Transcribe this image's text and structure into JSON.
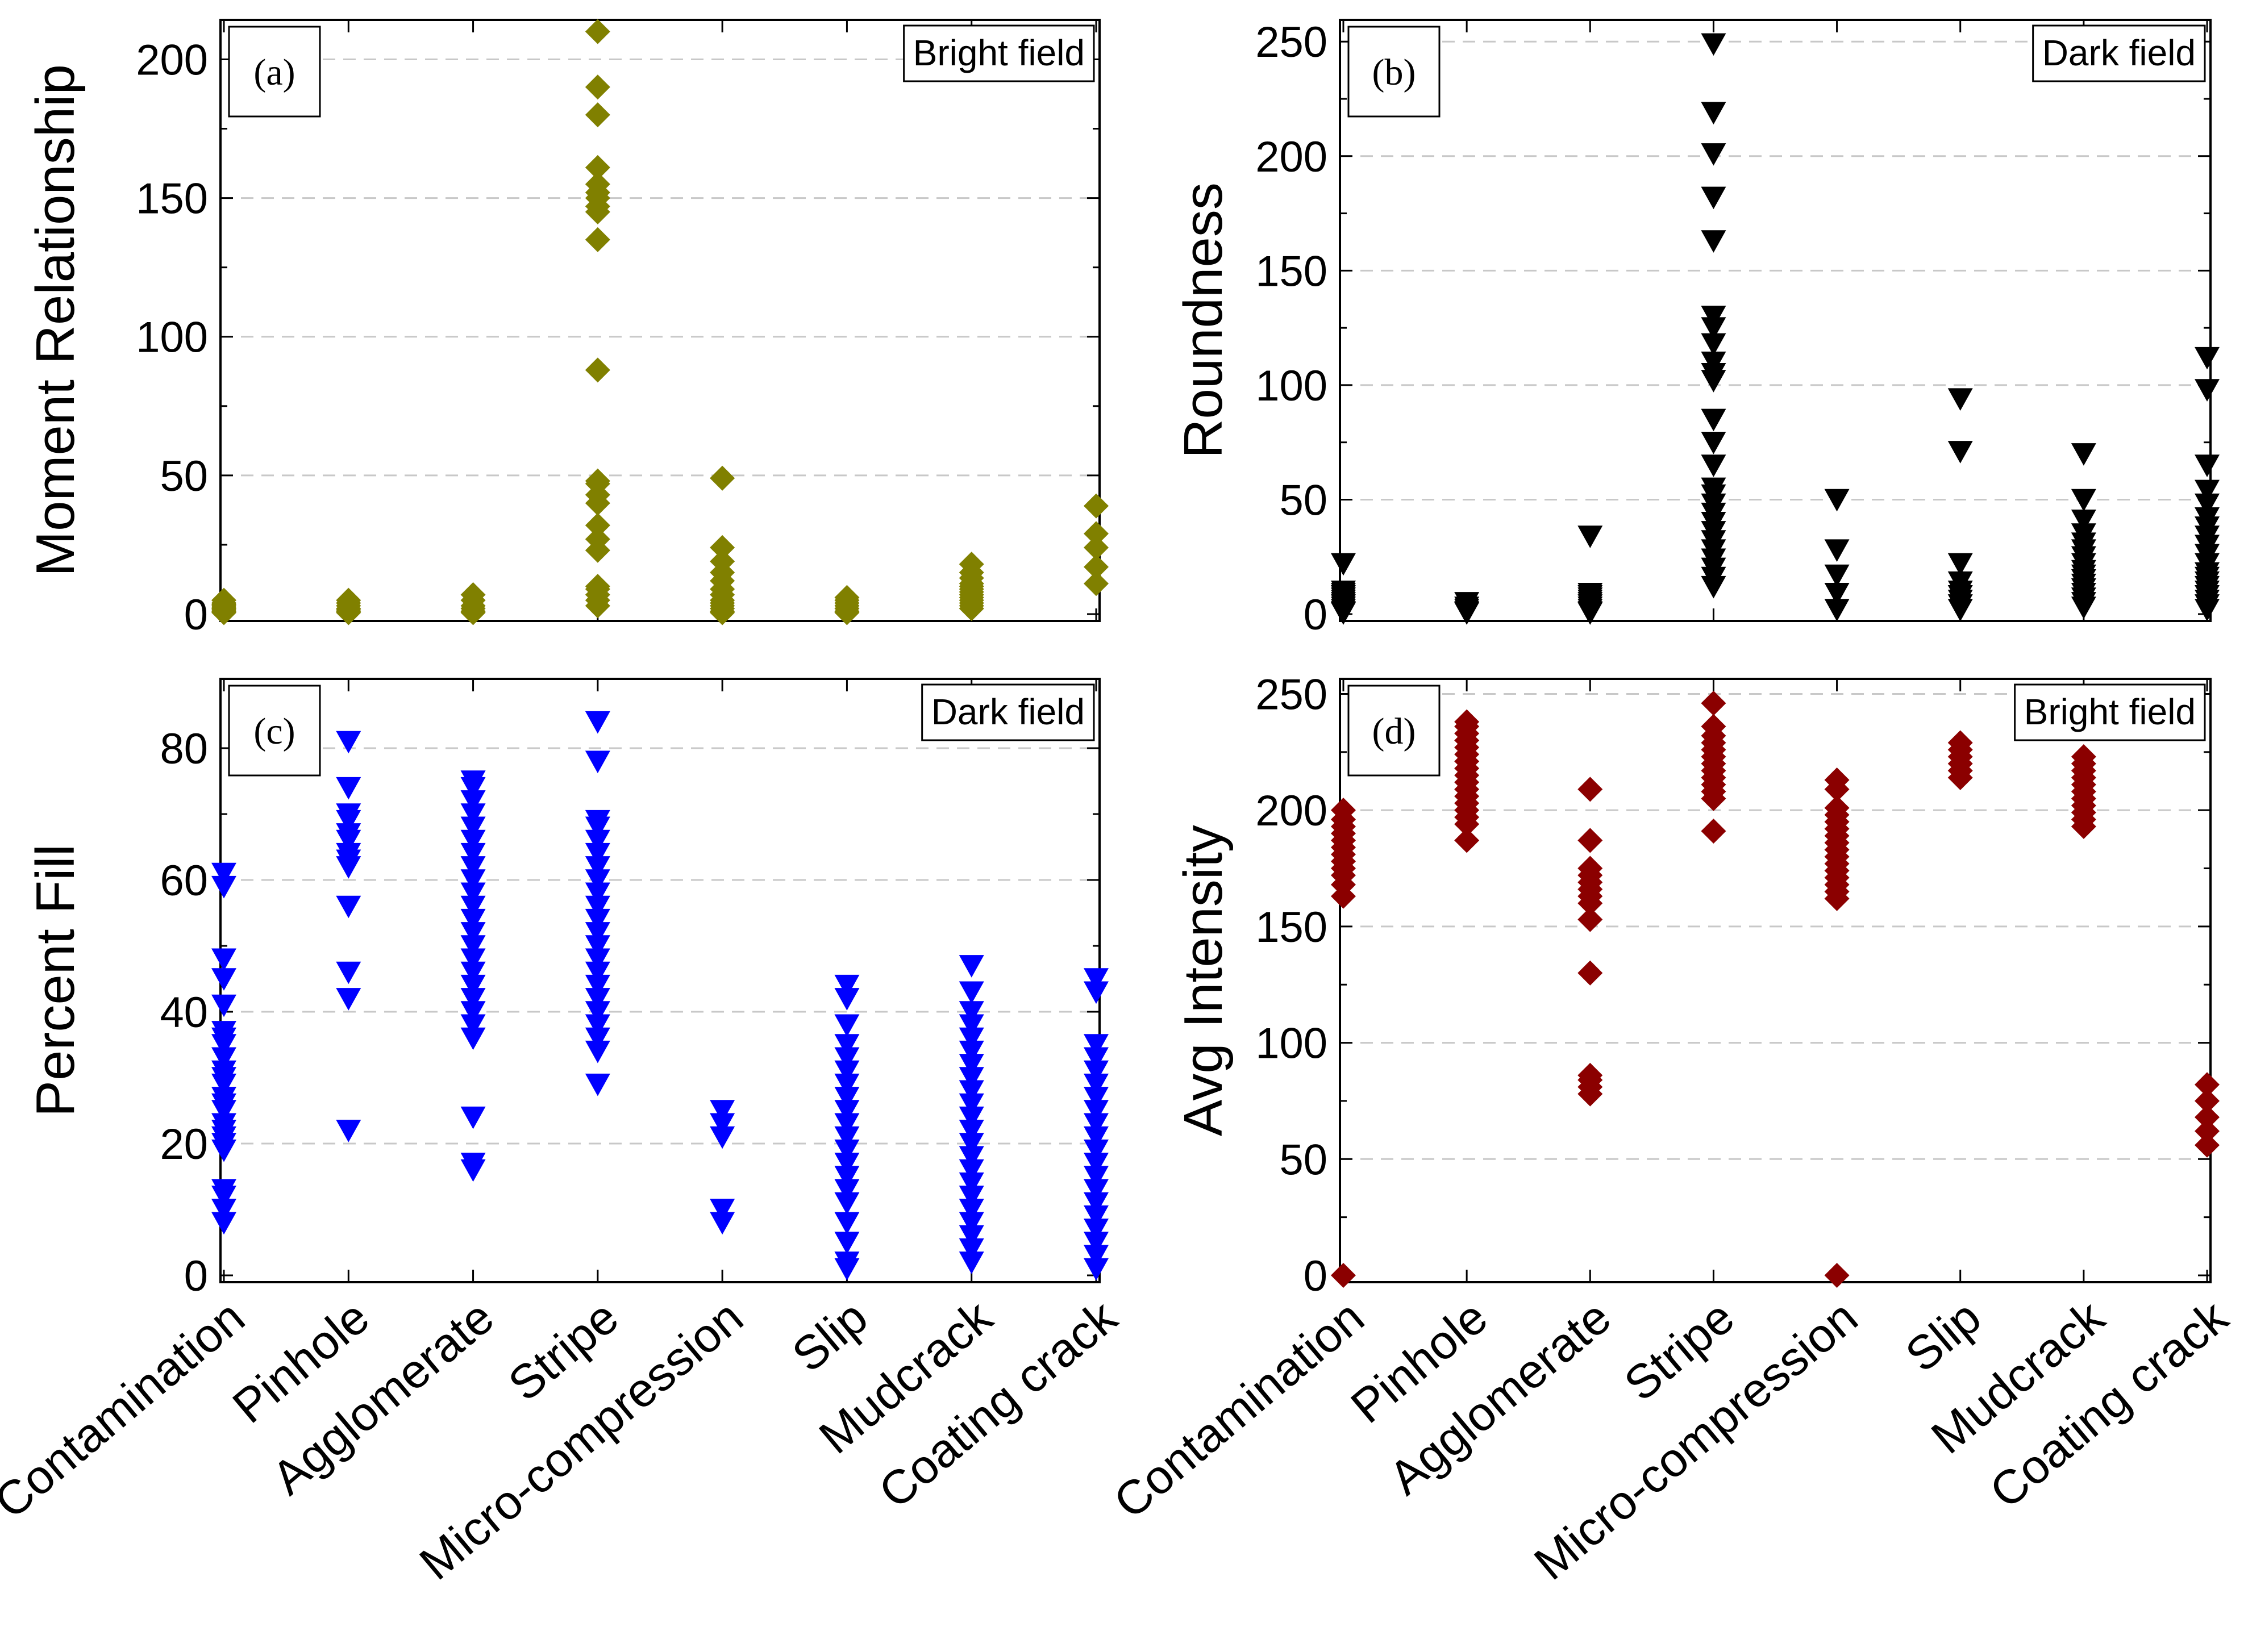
{
  "chart_data": [
    {
      "type": "scatter",
      "panel": "(a)",
      "field": "Bright field",
      "ylabel": "Moment Relationship",
      "xlabel": "",
      "categories": [
        "Contamination",
        "Pinhole",
        "Agglomerate",
        "Stripe",
        "Micro-compression",
        "Slip",
        "Mudcrack",
        "Coating crack"
      ],
      "ylim": [
        0,
        213
      ],
      "yticks": [
        0,
        50,
        100,
        150,
        200
      ],
      "grid": true,
      "marker": "diamond",
      "color": "#808000",
      "series": [
        {
          "name": "Moment Relationship",
          "values": [
            [
              0.5,
              1,
              1.5,
              2,
              2.5,
              3,
              3.5,
              4,
              5
            ],
            [
              0.5,
              1,
              1.5,
              2,
              3,
              4,
              5
            ],
            [
              0.5,
              1,
              2,
              3,
              5,
              7
            ],
            [
              3,
              5,
              7,
              9,
              10,
              23,
              27,
              32,
              40,
              43,
              47,
              48,
              88,
              135,
              145,
              147,
              150,
              152,
              155,
              161,
              180,
              190,
              210
            ],
            [
              0.5,
              1,
              2,
              3,
              4,
              5,
              7,
              9,
              12,
              15,
              19,
              24,
              49
            ],
            [
              0.5,
              1,
              2,
              3,
              4,
              5,
              6
            ],
            [
              2,
              3,
              4,
              5,
              6,
              7,
              8,
              9,
              10,
              11,
              13,
              15,
              18
            ],
            [
              11,
              17,
              24,
              29,
              39
            ]
          ]
        }
      ]
    },
    {
      "type": "scatter",
      "panel": "(b)",
      "field": "Dark field",
      "ylabel": "Roundness",
      "xlabel": "",
      "categories": [
        "Contamination",
        "Pinhole",
        "Agglomerate",
        "Stripe",
        "Micro-compression",
        "Slip",
        "Mudcrack",
        "Coating crack"
      ],
      "ylim": [
        0,
        258
      ],
      "yticks": [
        0,
        50,
        100,
        150,
        200,
        250
      ],
      "grid": true,
      "marker": "triangle-down",
      "color": "#000000",
      "series": [
        {
          "name": "Roundness",
          "values": [
            [
              0.5,
              1,
              2,
              3,
              4,
              5,
              6,
              7,
              8,
              9,
              10,
              22
            ],
            [
              0.5,
              1,
              2,
              3,
              5
            ],
            [
              0.5,
              1,
              2,
              3,
              4,
              5,
              6,
              7,
              8,
              9,
              34
            ],
            [
              12,
              16,
              20,
              24,
              28,
              32,
              36,
              40,
              44,
              48,
              52,
              55,
              65,
              75,
              85,
              102,
              105,
              110,
              118,
              125,
              130,
              163,
              182,
              201,
              219,
              249
            ],
            [
              2,
              9,
              17,
              28,
              50
            ],
            [
              2,
              4,
              6,
              8,
              10,
              14,
              22,
              71,
              94
            ],
            [
              3,
              5,
              7,
              9,
              11,
              13,
              15,
              17,
              19,
              22,
              25,
              28,
              31,
              35,
              41,
              50,
              70
            ],
            [
              2,
              4,
              6,
              8,
              10,
              12,
              14,
              16,
              18,
              22,
              26,
              30,
              34,
              38,
              42,
              48,
              54,
              65,
              98,
              112
            ]
          ]
        }
      ]
    },
    {
      "type": "scatter",
      "panel": "(c)",
      "field": "Dark field",
      "ylabel": "Percent Fill",
      "xlabel": "",
      "categories": [
        "Contamination",
        "Pinhole",
        "Agglomerate",
        "Stripe",
        "Micro-compression",
        "Slip",
        "Mudcrack",
        "Coating crack"
      ],
      "ylim": [
        0,
        90
      ],
      "yticks": [
        0,
        20,
        40,
        60,
        80
      ],
      "grid": true,
      "marker": "triangle-down",
      "color": "#0000ff",
      "series": [
        {
          "name": "Percent Fill",
          "values": [
            [
              8,
              10,
              12,
              13,
              19,
              20,
              21,
              22,
              23,
              25,
              26,
              27,
              29,
              30,
              31,
              33,
              35,
              36,
              37,
              41,
              45,
              48,
              59,
              61
            ],
            [
              22,
              42,
              46,
              56,
              62,
              63,
              64,
              66,
              67,
              69,
              70,
              74,
              81
            ],
            [
              16,
              17,
              24,
              36,
              38,
              40,
              42,
              44,
              46,
              48,
              50,
              52,
              54,
              56,
              58,
              60,
              62,
              64,
              66,
              68,
              70,
              72,
              74,
              75
            ],
            [
              29,
              34,
              36,
              38,
              40,
              42,
              44,
              46,
              48,
              50,
              52,
              54,
              56,
              58,
              60,
              62,
              64,
              66,
              68,
              69,
              78,
              84
            ],
            [
              8,
              10,
              21,
              23,
              25
            ],
            [
              1,
              2,
              5,
              8,
              11,
              13,
              15,
              17,
              19,
              21,
              23,
              25,
              27,
              29,
              31,
              33,
              35,
              38,
              42,
              44
            ],
            [
              2,
              4,
              6,
              8,
              10,
              12,
              14,
              16,
              18,
              20,
              22,
              24,
              26,
              28,
              30,
              32,
              34,
              36,
              38,
              40,
              43,
              47
            ],
            [
              1,
              3,
              5,
              7,
              9,
              11,
              13,
              15,
              17,
              19,
              21,
              23,
              25,
              27,
              29,
              31,
              33,
              35,
              43,
              45
            ]
          ]
        }
      ]
    },
    {
      "type": "scatter",
      "panel": "(d)",
      "field": "Bright field",
      "ylabel": "Avg Intensity",
      "xlabel": "",
      "categories": [
        "Contamination",
        "Pinhole",
        "Agglomerate",
        "Stripe",
        "Micro-compression",
        "Slip",
        "Mudcrack",
        "Coating crack"
      ],
      "ylim": [
        0,
        255
      ],
      "yticks": [
        0,
        50,
        100,
        150,
        200,
        250
      ],
      "grid": true,
      "marker": "diamond",
      "color": "#8b0000",
      "series": [
        {
          "name": "Avg Intensity",
          "values": [
            [
              0,
              163,
              168,
              172,
              175,
              178,
              181,
              184,
              187,
              190,
              193,
              196,
              200
            ],
            [
              187,
              194,
              197,
              200,
              203,
              206,
              209,
              212,
              215,
              218,
              221,
              224,
              227,
              230,
              233,
              236,
              238
            ],
            [
              78,
              81,
              84,
              86,
              130,
              153,
              160,
              163,
              166,
              169,
              172,
              175,
              187,
              209
            ],
            [
              191,
              205,
              208,
              211,
              214,
              217,
              220,
              223,
              226,
              229,
              232,
              236,
              246
            ],
            [
              0,
              162,
              165,
              168,
              171,
              174,
              177,
              180,
              183,
              186,
              189,
              192,
              195,
              198,
              201,
              209,
              213
            ],
            [
              214,
              217,
              220,
              223,
              226,
              229
            ],
            [
              193,
              196,
              199,
              202,
              205,
              208,
              211,
              214,
              217,
              220,
              223
            ],
            [
              56,
              62,
              68,
              75,
              82
            ]
          ]
        }
      ]
    }
  ]
}
